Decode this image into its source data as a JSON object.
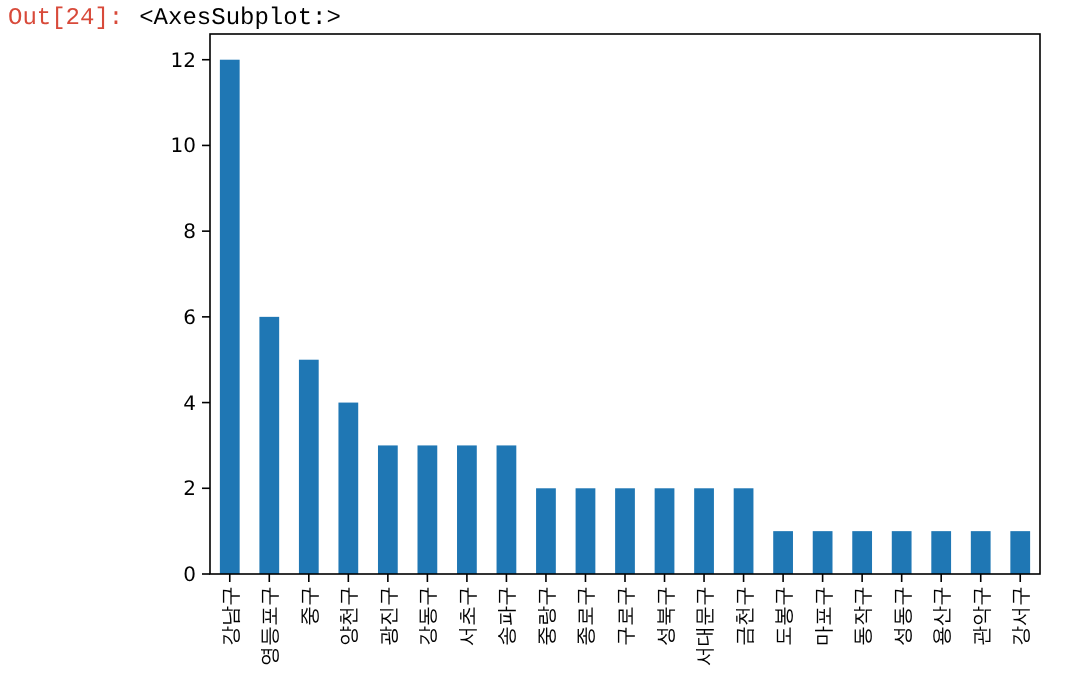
{
  "chart_data": {
    "type": "bar",
    "categories": [
      "강남구",
      "영등포구",
      "중구",
      "양천구",
      "광진구",
      "강동구",
      "서초구",
      "송파구",
      "중랑구",
      "종로구",
      "구로구",
      "성북구",
      "서대문구",
      "금천구",
      "도봉구",
      "마포구",
      "동작구",
      "성동구",
      "용산구",
      "관악구",
      "강서구"
    ],
    "values": [
      12,
      6,
      5,
      4,
      3,
      3,
      3,
      3,
      2,
      2,
      2,
      2,
      2,
      2,
      1,
      1,
      1,
      1,
      1,
      1,
      1
    ],
    "color": "#1f77b4",
    "ylim": [
      0,
      12.6
    ],
    "yticks": [
      0,
      2,
      4,
      6,
      8,
      10,
      12
    ],
    "annotations": [
      "Out[24]:",
      "<AxesSubplot:>"
    ]
  }
}
